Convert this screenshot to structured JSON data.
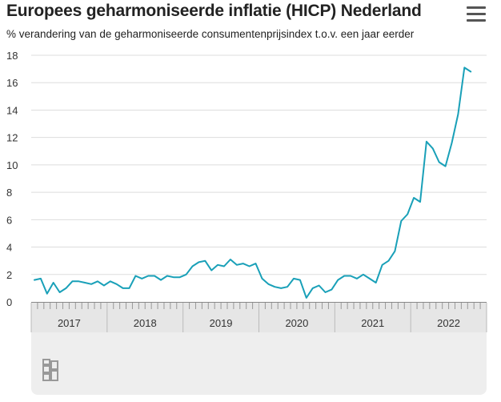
{
  "header": {
    "title": "Europees geharmoniseerde inflatie (HICP) Nederland",
    "subtitle": "% verandering van de geharmoniseerde consumentenprijsindex t.o.v. een jaar eerder"
  },
  "icons": {
    "menu": "hamburger-menu-icon",
    "logo": "cbs-logo-icon"
  },
  "colors": {
    "line": "#19a0b8",
    "grid": "#dddddd",
    "axis_band": "#e6e6e6",
    "footer": "#eeeeee"
  },
  "chart_data": {
    "type": "line",
    "title": "Europees geharmoniseerde inflatie (HICP) Nederland",
    "subtitle": "% verandering van de geharmoniseerde consumentenprijsindex t.o.v. een jaar eerder",
    "xlabel": "",
    "ylabel": "",
    "ylim": [
      0,
      18
    ],
    "yticks": [
      0,
      2,
      4,
      6,
      8,
      10,
      12,
      14,
      16,
      18
    ],
    "years": [
      "2017",
      "2018",
      "2019",
      "2020",
      "2021",
      "2022"
    ],
    "x_start": "2017-01",
    "grid": true,
    "series": [
      {
        "name": "",
        "values": [
          1.6,
          1.7,
          0.6,
          1.4,
          0.7,
          1.0,
          1.5,
          1.5,
          1.4,
          1.3,
          1.5,
          1.2,
          1.5,
          1.3,
          1.0,
          1.0,
          1.9,
          1.7,
          1.9,
          1.9,
          1.6,
          1.9,
          1.8,
          1.8,
          2.0,
          2.6,
          2.9,
          3.0,
          2.3,
          2.7,
          2.6,
          3.1,
          2.7,
          2.8,
          2.6,
          2.8,
          1.7,
          1.3,
          1.1,
          1.0,
          1.1,
          1.7,
          1.6,
          0.3,
          1.0,
          1.2,
          0.7,
          0.9,
          1.6,
          1.9,
          1.9,
          1.7,
          2.0,
          1.7,
          1.4,
          2.7,
          3.0,
          3.7,
          5.9,
          6.4,
          7.6,
          7.3,
          11.7,
          11.2,
          10.2,
          9.9,
          11.6,
          13.7,
          17.1,
          16.8
        ]
      }
    ]
  }
}
